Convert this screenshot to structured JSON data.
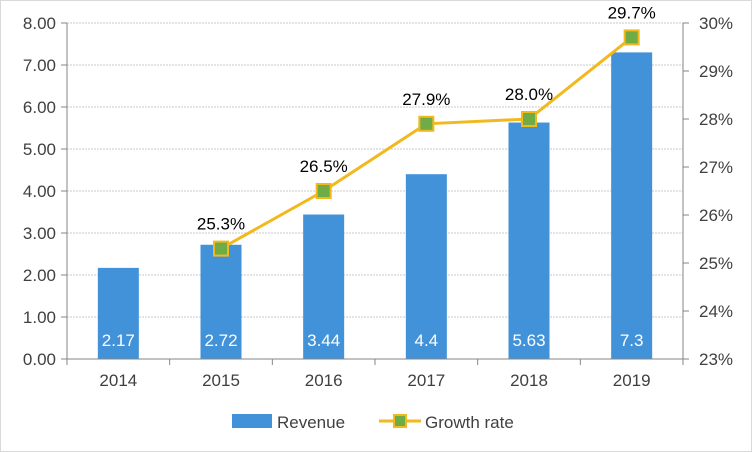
{
  "chart_data": {
    "type": "bar",
    "title": "",
    "categories": [
      "2014",
      "2015",
      "2016",
      "2017",
      "2018",
      "2019"
    ],
    "series": [
      {
        "name": "Revenue",
        "type": "bar",
        "axis": "left",
        "values": [
          2.17,
          2.72,
          3.44,
          4.4,
          5.63,
          7.3
        ],
        "labels": [
          "2.17",
          "2.72",
          "3.44",
          "4.4",
          "5.63",
          "7.3"
        ],
        "color": "#4192d9"
      },
      {
        "name": "Growth rate",
        "type": "line",
        "axis": "right",
        "values": [
          null,
          25.3,
          26.5,
          27.9,
          28.0,
          29.7
        ],
        "labels": [
          "",
          "25.3%",
          "26.5%",
          "27.9%",
          "28.0%",
          "29.7%"
        ],
        "color": "#f2b91e",
        "marker_color": "#6fac46"
      }
    ],
    "y_left": {
      "lim": [
        0,
        8
      ],
      "ticks": [
        "0.00",
        "1.00",
        "2.00",
        "3.00",
        "4.00",
        "5.00",
        "6.00",
        "7.00",
        "8.00"
      ]
    },
    "y_right": {
      "lim": [
        23,
        30
      ],
      "ticks": [
        "23%",
        "24%",
        "25%",
        "26%",
        "27%",
        "28%",
        "29%",
        "30%"
      ]
    },
    "grid": true,
    "legend": {
      "position": "bottom",
      "items": [
        "Revenue",
        "Growth rate"
      ]
    }
  }
}
